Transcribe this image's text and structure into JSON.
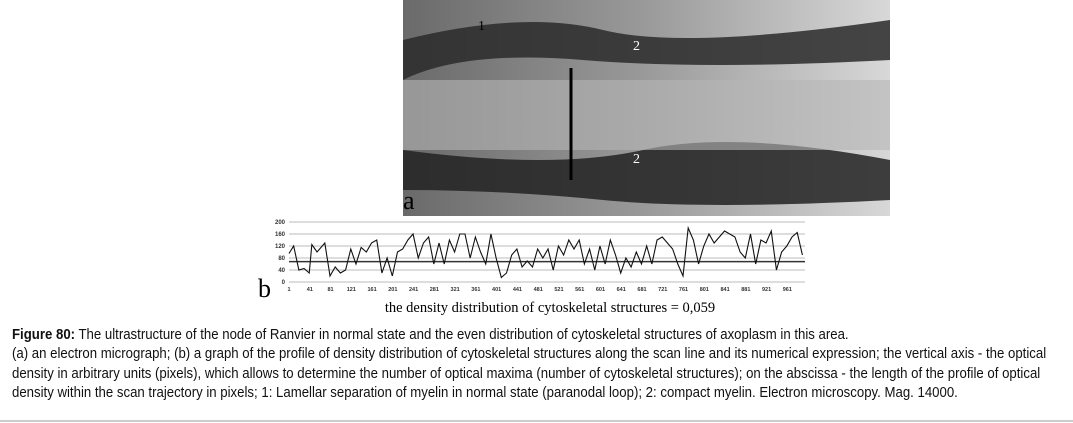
{
  "figure": {
    "panel_a_label": "a",
    "panel_b_label": "b",
    "micrograph_labels": [
      "1",
      "2",
      "2"
    ],
    "subtitle": "the density distribution of cytoskeletal structures = 0,059",
    "caption_title": "Figure 80:",
    "caption_first": " The ultrastructure of the node of Ranvier in normal state and the even distribution of cytoskeletal structures of axoplasm in this area.",
    "caption_body": "(a) an electron micrograph; (b) a graph of the profile of density distribution of cytoskeletal structures along the scan line and its numerical expression; the vertical axis - the optical density in arbitrary units (pixels), which allows to determine the number of optical maxima (number of cytoskeletal structures); on the abscissa - the length of the profile of optical density within the scan trajectory in pixels; 1: Lamellar separation of myelin in normal state (paranodal loop); 2: compact myelin. Electron microscopy. Mag. 14000."
  },
  "chart_data": {
    "type": "line",
    "xlim": [
      1,
      995
    ],
    "ylim": [
      0,
      200
    ],
    "yticks": [
      0,
      40,
      80,
      120,
      160,
      200
    ],
    "xticks": [
      1,
      41,
      81,
      121,
      161,
      201,
      241,
      281,
      321,
      361,
      401,
      441,
      481,
      521,
      561,
      601,
      641,
      681,
      721,
      761,
      801,
      841,
      881,
      921,
      961
    ],
    "grid": true,
    "threshold": 68,
    "x": [
      1,
      10,
      20,
      30,
      40,
      45,
      55,
      70,
      80,
      90,
      100,
      110,
      120,
      130,
      140,
      150,
      160,
      170,
      180,
      190,
      200,
      210,
      220,
      230,
      240,
      250,
      260,
      270,
      280,
      290,
      300,
      310,
      320,
      330,
      340,
      350,
      360,
      370,
      380,
      390,
      400,
      410,
      420,
      430,
      440,
      450,
      460,
      470,
      480,
      490,
      500,
      510,
      520,
      530,
      540,
      550,
      560,
      570,
      580,
      590,
      600,
      610,
      620,
      630,
      640,
      650,
      660,
      670,
      680,
      690,
      700,
      710,
      720,
      730,
      740,
      750,
      760,
      770,
      780,
      790,
      800,
      810,
      820,
      830,
      840,
      850,
      860,
      870,
      880,
      890,
      900,
      910,
      920,
      930,
      940,
      950,
      960,
      970,
      980,
      990
    ],
    "values": [
      95,
      120,
      40,
      45,
      30,
      125,
      100,
      130,
      20,
      50,
      30,
      40,
      110,
      60,
      115,
      100,
      130,
      140,
      30,
      80,
      20,
      100,
      110,
      140,
      160,
      80,
      130,
      150,
      60,
      130,
      60,
      140,
      100,
      160,
      160,
      80,
      150,
      100,
      60,
      160,
      80,
      15,
      30,
      90,
      110,
      50,
      70,
      50,
      110,
      80,
      110,
      40,
      120,
      90,
      140,
      110,
      140,
      60,
      110,
      40,
      120,
      60,
      140,
      90,
      30,
      80,
      50,
      100,
      60,
      120,
      60,
      140,
      150,
      130,
      110,
      60,
      20,
      180,
      140,
      60,
      120,
      160,
      130,
      150,
      170,
      160,
      150,
      100,
      80,
      160,
      60,
      140,
      130,
      170,
      40,
      100,
      120,
      150,
      165,
      90
    ]
  }
}
